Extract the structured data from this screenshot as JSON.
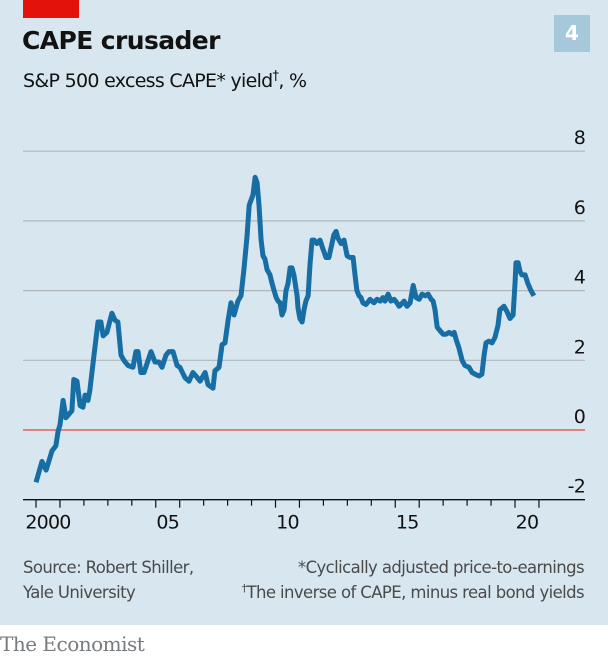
{
  "header": {
    "title": "CAPE crusader",
    "subtitle_main": "S&P 500 excess CAPE* yield",
    "subtitle_mark": "†",
    "subtitle_unit": ", %",
    "chart_number": "4"
  },
  "footer": {
    "source_line1": "Source: Robert Shiller,",
    "source_line2": "Yale University",
    "note1": "*Cyclically adjusted price-to-earnings",
    "note2_mark": "†",
    "note2": "The inverse of CAPE, minus real bond yields",
    "brand": "The Economist"
  },
  "colors": {
    "background": "#d7e6ef",
    "line": "#176ea5",
    "zero_line": "#e0605a",
    "gridline": "#b0b7bb",
    "accent_red": "#e3120b",
    "badge": "#a5c8db"
  },
  "chart_data": {
    "type": "line",
    "title": "CAPE crusader",
    "subtitle": "S&P 500 excess CAPE* yield†, %",
    "xlabel": "",
    "ylabel": "%",
    "xlim": [
      1999.45,
      2021.0
    ],
    "ylim": [
      -2,
      8
    ],
    "yticks": [
      -2,
      0,
      2,
      4,
      6,
      8
    ],
    "ytick_labels": [
      "-2",
      "0",
      "2",
      "4",
      "6",
      "8"
    ],
    "xtick_years": [
      2000,
      2001,
      2002,
      2003,
      2004,
      2005,
      2006,
      2007,
      2008,
      2009,
      2010,
      2011,
      2012,
      2013,
      2014,
      2015,
      2016,
      2017,
      2018,
      2019,
      2020,
      2021
    ],
    "xtick_labels": [
      {
        "year": 2000,
        "label": "2000"
      },
      {
        "year": 2005,
        "label": "05"
      },
      {
        "year": 2010,
        "label": "10"
      },
      {
        "year": 2015,
        "label": "15"
      },
      {
        "year": 2020,
        "label": "20"
      }
    ],
    "grid": true,
    "zero_line": true,
    "y_axis_side": "right",
    "series": [
      {
        "name": "S&P 500 excess CAPE yield",
        "points": [
          [
            2000.0,
            -1.5
          ],
          [
            2000.25,
            -0.9
          ],
          [
            2000.42,
            -1.15
          ],
          [
            2000.67,
            -0.6
          ],
          [
            2000.83,
            -0.45
          ],
          [
            2000.92,
            -0.05
          ],
          [
            2001.0,
            0.15
          ],
          [
            2001.13,
            0.85
          ],
          [
            2001.25,
            0.35
          ],
          [
            2001.5,
            0.55
          ],
          [
            2001.58,
            1.45
          ],
          [
            2001.71,
            1.4
          ],
          [
            2001.84,
            0.7
          ],
          [
            2001.96,
            0.65
          ],
          [
            2002.05,
            1.0
          ],
          [
            2002.17,
            0.85
          ],
          [
            2002.25,
            1.15
          ],
          [
            2002.42,
            2.15
          ],
          [
            2002.59,
            3.1
          ],
          [
            2002.71,
            3.1
          ],
          [
            2002.8,
            2.7
          ],
          [
            2002.96,
            2.8
          ],
          [
            2003.17,
            3.35
          ],
          [
            2003.3,
            3.15
          ],
          [
            2003.42,
            3.1
          ],
          [
            2003.55,
            2.15
          ],
          [
            2003.67,
            2.0
          ],
          [
            2003.84,
            1.85
          ],
          [
            2004.05,
            1.8
          ],
          [
            2004.17,
            2.25
          ],
          [
            2004.26,
            2.25
          ],
          [
            2004.38,
            1.65
          ],
          [
            2004.51,
            1.65
          ],
          [
            2004.68,
            2.0
          ],
          [
            2004.8,
            2.25
          ],
          [
            2004.97,
            1.95
          ],
          [
            2005.13,
            1.95
          ],
          [
            2005.26,
            1.8
          ],
          [
            2005.43,
            2.15
          ],
          [
            2005.55,
            2.25
          ],
          [
            2005.72,
            2.25
          ],
          [
            2005.89,
            1.85
          ],
          [
            2006.01,
            1.8
          ],
          [
            2006.22,
            1.5
          ],
          [
            2006.39,
            1.4
          ],
          [
            2006.55,
            1.65
          ],
          [
            2006.68,
            1.55
          ],
          [
            2006.85,
            1.4
          ],
          [
            2007.06,
            1.65
          ],
          [
            2007.18,
            1.3
          ],
          [
            2007.39,
            1.2
          ],
          [
            2007.47,
            1.7
          ],
          [
            2007.64,
            1.8
          ],
          [
            2007.77,
            2.45
          ],
          [
            2007.89,
            2.5
          ],
          [
            2008.02,
            3.15
          ],
          [
            2008.14,
            3.65
          ],
          [
            2008.27,
            3.3
          ],
          [
            2008.43,
            3.7
          ],
          [
            2008.56,
            3.85
          ],
          [
            2008.68,
            4.6
          ],
          [
            2008.81,
            5.55
          ],
          [
            2008.9,
            6.45
          ],
          [
            2008.98,
            6.6
          ],
          [
            2009.06,
            6.75
          ],
          [
            2009.15,
            7.25
          ],
          [
            2009.23,
            7.1
          ],
          [
            2009.31,
            6.45
          ],
          [
            2009.4,
            5.45
          ],
          [
            2009.48,
            5.0
          ],
          [
            2009.56,
            4.9
          ],
          [
            2009.65,
            4.6
          ],
          [
            2009.69,
            4.55
          ],
          [
            2009.77,
            4.45
          ],
          [
            2009.86,
            4.2
          ],
          [
            2009.94,
            4.0
          ],
          [
            2010.03,
            3.8
          ],
          [
            2010.11,
            3.7
          ],
          [
            2010.19,
            3.65
          ],
          [
            2010.27,
            3.3
          ],
          [
            2010.36,
            3.45
          ],
          [
            2010.44,
            4.0
          ],
          [
            2010.52,
            4.2
          ],
          [
            2010.61,
            4.65
          ],
          [
            2010.69,
            4.65
          ],
          [
            2010.77,
            4.45
          ],
          [
            2010.9,
            3.85
          ],
          [
            2010.94,
            3.5
          ],
          [
            2011.02,
            3.2
          ],
          [
            2011.11,
            3.1
          ],
          [
            2011.19,
            3.45
          ],
          [
            2011.27,
            3.7
          ],
          [
            2011.36,
            3.85
          ],
          [
            2011.44,
            4.75
          ],
          [
            2011.53,
            5.45
          ],
          [
            2011.61,
            5.45
          ],
          [
            2011.73,
            5.35
          ],
          [
            2011.86,
            5.45
          ],
          [
            2011.98,
            5.2
          ],
          [
            2012.11,
            4.95
          ],
          [
            2012.23,
            4.95
          ],
          [
            2012.44,
            5.6
          ],
          [
            2012.53,
            5.7
          ],
          [
            2012.61,
            5.5
          ],
          [
            2012.74,
            5.35
          ],
          [
            2012.86,
            5.45
          ],
          [
            2012.99,
            5.0
          ],
          [
            2013.11,
            4.95
          ],
          [
            2013.24,
            4.95
          ],
          [
            2013.32,
            4.45
          ],
          [
            2013.4,
            4.0
          ],
          [
            2013.49,
            3.85
          ],
          [
            2013.57,
            3.8
          ],
          [
            2013.65,
            3.65
          ],
          [
            2013.78,
            3.6
          ],
          [
            2013.95,
            3.75
          ],
          [
            2014.11,
            3.65
          ],
          [
            2014.24,
            3.75
          ],
          [
            2014.37,
            3.7
          ],
          [
            2014.49,
            3.8
          ],
          [
            2014.57,
            3.7
          ],
          [
            2014.7,
            3.9
          ],
          [
            2014.82,
            3.7
          ],
          [
            2014.95,
            3.75
          ],
          [
            2015.07,
            3.65
          ],
          [
            2015.16,
            3.55
          ],
          [
            2015.24,
            3.6
          ],
          [
            2015.37,
            3.7
          ],
          [
            2015.49,
            3.55
          ],
          [
            2015.62,
            3.65
          ],
          [
            2015.75,
            4.15
          ],
          [
            2015.87,
            3.8
          ],
          [
            2016.0,
            3.75
          ],
          [
            2016.12,
            3.9
          ],
          [
            2016.25,
            3.85
          ],
          [
            2016.37,
            3.9
          ],
          [
            2016.5,
            3.75
          ],
          [
            2016.58,
            3.7
          ],
          [
            2016.66,
            3.45
          ],
          [
            2016.75,
            2.95
          ],
          [
            2016.87,
            2.85
          ],
          [
            2017.0,
            2.75
          ],
          [
            2017.12,
            2.75
          ],
          [
            2017.25,
            2.8
          ],
          [
            2017.37,
            2.75
          ],
          [
            2017.46,
            2.8
          ],
          [
            2017.54,
            2.6
          ],
          [
            2017.66,
            2.35
          ],
          [
            2017.79,
            2.0
          ],
          [
            2017.91,
            1.85
          ],
          [
            2018.08,
            1.8
          ],
          [
            2018.21,
            1.65
          ],
          [
            2018.33,
            1.6
          ],
          [
            2018.5,
            1.55
          ],
          [
            2018.62,
            1.6
          ],
          [
            2018.71,
            2.15
          ],
          [
            2018.79,
            2.5
          ],
          [
            2018.91,
            2.55
          ],
          [
            2019.04,
            2.5
          ],
          [
            2019.16,
            2.65
          ],
          [
            2019.29,
            3.0
          ],
          [
            2019.37,
            3.45
          ],
          [
            2019.54,
            3.55
          ],
          [
            2019.66,
            3.4
          ],
          [
            2019.79,
            3.2
          ],
          [
            2019.92,
            3.3
          ],
          [
            2020.0,
            4.2
          ],
          [
            2020.04,
            4.8
          ],
          [
            2020.13,
            4.8
          ],
          [
            2020.21,
            4.55
          ],
          [
            2020.29,
            4.45
          ],
          [
            2020.42,
            4.45
          ],
          [
            2020.54,
            4.2
          ],
          [
            2020.67,
            4.0
          ],
          [
            2020.79,
            3.85
          ]
        ]
      }
    ]
  }
}
